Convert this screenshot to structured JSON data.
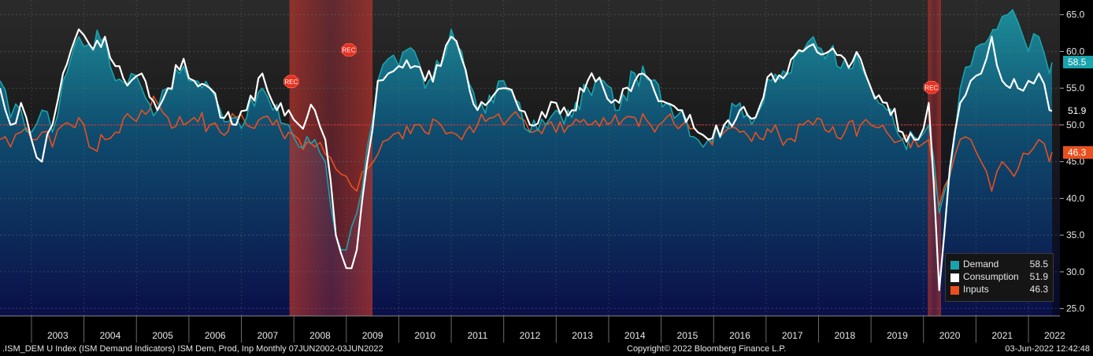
{
  "footer": {
    "left": ".ISM_DEM U Index (ISM Demand Indicators) ISM Dem, Prod, Inp  Monthly 07JUN2002-03JUN2022",
    "center": "Copyright© 2022 Bloomberg Finance L.P.",
    "right": "03-Jun-2022 12:42:48"
  },
  "last_values": {
    "demand": "58.5",
    "consumption": "51.9",
    "inputs": "46.3"
  },
  "legend": [
    {
      "name": "Demand",
      "value": "58.5",
      "color": "#19a3ad"
    },
    {
      "name": "Consumption",
      "value": "51.9",
      "color": "#ffffff"
    },
    {
      "name": "Inputs",
      "value": "46.3",
      "color": "#e8501f"
    }
  ],
  "recession_label": "REC",
  "colors": {
    "demand": "#19a3ad",
    "consumption": "#ffffff",
    "inputs": "#e8501f",
    "recession": "#c0392b",
    "reference_line": "#ff3030"
  },
  "chart_data": {
    "type": "line",
    "x_start": "2002-06",
    "x_end": "2022-05",
    "frequency": "monthly",
    "xlim": [
      2002.4,
      2022.6
    ],
    "ylim": [
      24,
      67
    ],
    "y_ticks": [
      "25.0",
      "30.0",
      "35.0",
      "40.0",
      "45.0",
      "50.0",
      "55.0",
      "60.0",
      "65.0"
    ],
    "x_tick_labels": [
      "2003",
      "2004",
      "2005",
      "2006",
      "2007",
      "2008",
      "2009",
      "2010",
      "2011",
      "2012",
      "2013",
      "2014",
      "2015",
      "2016",
      "2017",
      "2018",
      "2019",
      "2020",
      "2021",
      "2022"
    ],
    "reference_line": 50,
    "recessions": [
      {
        "start": "2007-12",
        "end": "2009-06"
      },
      {
        "start": "2020-02",
        "end": "2020-04"
      }
    ],
    "grid": true,
    "axis_position": "right",
    "legend_position": "bottom-right",
    "series": [
      {
        "name": "Demand",
        "fill": "area",
        "keypoints": [
          [
            2002.4,
            56
          ],
          [
            2002.6,
            51
          ],
          [
            2002.8,
            52
          ],
          [
            2003.0,
            49
          ],
          [
            2003.2,
            52
          ],
          [
            2003.4,
            49
          ],
          [
            2003.6,
            56
          ],
          [
            2003.9,
            62
          ],
          [
            2004.1,
            61
          ],
          [
            2004.4,
            62
          ],
          [
            2004.6,
            56
          ],
          [
            2004.9,
            57
          ],
          [
            2005.1,
            55
          ],
          [
            2005.4,
            52
          ],
          [
            2005.6,
            55
          ],
          [
            2005.9,
            58
          ],
          [
            2006.1,
            56
          ],
          [
            2006.4,
            55
          ],
          [
            2006.6,
            52
          ],
          [
            2006.9,
            51
          ],
          [
            2007.1,
            51
          ],
          [
            2007.4,
            55
          ],
          [
            2007.6,
            52
          ],
          [
            2007.9,
            50
          ],
          [
            2008.1,
            47
          ],
          [
            2008.4,
            48
          ],
          [
            2008.6,
            45
          ],
          [
            2008.8,
            35
          ],
          [
            2009.0,
            33
          ],
          [
            2009.2,
            38
          ],
          [
            2009.4,
            47
          ],
          [
            2009.6,
            56
          ],
          [
            2009.8,
            59
          ],
          [
            2010.0,
            58
          ],
          [
            2010.3,
            60
          ],
          [
            2010.5,
            55
          ],
          [
            2010.8,
            58
          ],
          [
            2011.0,
            63
          ],
          [
            2011.2,
            60
          ],
          [
            2011.5,
            52
          ],
          [
            2011.8,
            53
          ],
          [
            2012.0,
            56
          ],
          [
            2012.3,
            53
          ],
          [
            2012.5,
            49
          ],
          [
            2012.8,
            50
          ],
          [
            2013.0,
            52
          ],
          [
            2013.3,
            51
          ],
          [
            2013.6,
            55
          ],
          [
            2013.9,
            56
          ],
          [
            2014.2,
            52
          ],
          [
            2014.5,
            57
          ],
          [
            2014.8,
            56
          ],
          [
            2015.1,
            53
          ],
          [
            2015.4,
            52
          ],
          [
            2015.7,
            48
          ],
          [
            2015.9,
            48
          ],
          [
            2016.2,
            50
          ],
          [
            2016.5,
            53
          ],
          [
            2016.8,
            51
          ],
          [
            2017.1,
            56
          ],
          [
            2017.4,
            57
          ],
          [
            2017.7,
            60
          ],
          [
            2017.9,
            62
          ],
          [
            2018.2,
            60
          ],
          [
            2018.5,
            59
          ],
          [
            2018.8,
            58
          ],
          [
            2019.0,
            55
          ],
          [
            2019.3,
            52
          ],
          [
            2019.6,
            48
          ],
          [
            2019.9,
            48
          ],
          [
            2020.1,
            50
          ],
          [
            2020.3,
            38
          ],
          [
            2020.5,
            43
          ],
          [
            2020.7,
            55
          ],
          [
            2020.9,
            58
          ],
          [
            2021.1,
            61
          ],
          [
            2021.4,
            63
          ],
          [
            2021.6,
            65
          ],
          [
            2021.8,
            64
          ],
          [
            2022.0,
            60
          ],
          [
            2022.2,
            62
          ],
          [
            2022.4,
            57
          ],
          [
            2022.45,
            58.5
          ]
        ]
      },
      {
        "name": "Consumption",
        "fill": "none",
        "keypoints": [
          [
            2002.4,
            55
          ],
          [
            2002.6,
            50
          ],
          [
            2002.8,
            53
          ],
          [
            2003.0,
            48
          ],
          [
            2003.2,
            45
          ],
          [
            2003.4,
            50
          ],
          [
            2003.6,
            57
          ],
          [
            2003.9,
            63
          ],
          [
            2004.1,
            61
          ],
          [
            2004.4,
            62
          ],
          [
            2004.6,
            58
          ],
          [
            2004.9,
            56
          ],
          [
            2005.1,
            57
          ],
          [
            2005.4,
            52
          ],
          [
            2005.6,
            55
          ],
          [
            2005.9,
            59
          ],
          [
            2006.1,
            56
          ],
          [
            2006.4,
            55
          ],
          [
            2006.6,
            51
          ],
          [
            2006.9,
            50
          ],
          [
            2007.1,
            52
          ],
          [
            2007.4,
            57
          ],
          [
            2007.6,
            53
          ],
          [
            2007.9,
            52
          ],
          [
            2008.1,
            50
          ],
          [
            2008.4,
            52
          ],
          [
            2008.6,
            48
          ],
          [
            2008.8,
            35
          ],
          [
            2009.0,
            30.5
          ],
          [
            2009.2,
            33
          ],
          [
            2009.4,
            45
          ],
          [
            2009.6,
            56
          ],
          [
            2009.8,
            57
          ],
          [
            2010.0,
            58
          ],
          [
            2010.3,
            58
          ],
          [
            2010.5,
            56
          ],
          [
            2010.8,
            58
          ],
          [
            2011.0,
            62
          ],
          [
            2011.2,
            59
          ],
          [
            2011.5,
            52
          ],
          [
            2011.8,
            54
          ],
          [
            2012.0,
            55
          ],
          [
            2012.3,
            52
          ],
          [
            2012.5,
            50
          ],
          [
            2012.8,
            51
          ],
          [
            2013.0,
            53
          ],
          [
            2013.3,
            52
          ],
          [
            2013.6,
            56
          ],
          [
            2013.9,
            55
          ],
          [
            2014.2,
            53
          ],
          [
            2014.5,
            56
          ],
          [
            2014.8,
            56
          ],
          [
            2015.1,
            53
          ],
          [
            2015.4,
            52
          ],
          [
            2015.7,
            49
          ],
          [
            2015.9,
            48
          ],
          [
            2016.2,
            50
          ],
          [
            2016.5,
            52
          ],
          [
            2016.8,
            51
          ],
          [
            2017.1,
            57
          ],
          [
            2017.4,
            57
          ],
          [
            2017.7,
            60
          ],
          [
            2017.9,
            61
          ],
          [
            2018.2,
            60
          ],
          [
            2018.5,
            59
          ],
          [
            2018.8,
            59
          ],
          [
            2019.0,
            55
          ],
          [
            2019.3,
            53
          ],
          [
            2019.6,
            49
          ],
          [
            2019.9,
            48
          ],
          [
            2020.1,
            53
          ],
          [
            2020.3,
            27.5
          ],
          [
            2020.5,
            44
          ],
          [
            2020.7,
            53
          ],
          [
            2020.9,
            56
          ],
          [
            2021.1,
            57
          ],
          [
            2021.3,
            62
          ],
          [
            2021.5,
            56
          ],
          [
            2021.8,
            55
          ],
          [
            2022.0,
            56
          ],
          [
            2022.2,
            57
          ],
          [
            2022.4,
            52
          ],
          [
            2022.45,
            51.9
          ]
        ]
      },
      {
        "name": "Inputs",
        "fill": "none",
        "keypoints": [
          [
            2002.4,
            48
          ],
          [
            2002.6,
            47
          ],
          [
            2002.8,
            49
          ],
          [
            2003.0,
            48
          ],
          [
            2003.2,
            49
          ],
          [
            2003.4,
            47
          ],
          [
            2003.6,
            50
          ],
          [
            2003.9,
            51
          ],
          [
            2004.1,
            47
          ],
          [
            2004.4,
            48
          ],
          [
            2004.6,
            49
          ],
          [
            2004.9,
            51
          ],
          [
            2005.1,
            52
          ],
          [
            2005.4,
            53
          ],
          [
            2005.6,
            51
          ],
          [
            2005.9,
            50
          ],
          [
            2006.1,
            51
          ],
          [
            2006.4,
            50
          ],
          [
            2006.6,
            49
          ],
          [
            2006.9,
            51
          ],
          [
            2007.1,
            50
          ],
          [
            2007.4,
            51
          ],
          [
            2007.6,
            50
          ],
          [
            2007.9,
            49
          ],
          [
            2008.1,
            48
          ],
          [
            2008.4,
            47
          ],
          [
            2008.6,
            46
          ],
          [
            2008.8,
            44
          ],
          [
            2009.0,
            43
          ],
          [
            2009.2,
            41
          ],
          [
            2009.4,
            44
          ],
          [
            2009.6,
            46
          ],
          [
            2009.8,
            48
          ],
          [
            2010.0,
            49
          ],
          [
            2010.3,
            50
          ],
          [
            2010.5,
            49
          ],
          [
            2010.8,
            50
          ],
          [
            2011.0,
            49
          ],
          [
            2011.2,
            48
          ],
          [
            2011.5,
            50
          ],
          [
            2011.8,
            51
          ],
          [
            2012.0,
            50
          ],
          [
            2012.3,
            51
          ],
          [
            2012.5,
            49
          ],
          [
            2012.8,
            50
          ],
          [
            2013.0,
            49
          ],
          [
            2013.3,
            50
          ],
          [
            2013.6,
            50
          ],
          [
            2013.9,
            51
          ],
          [
            2014.2,
            50
          ],
          [
            2014.5,
            51
          ],
          [
            2014.8,
            50
          ],
          [
            2015.1,
            51
          ],
          [
            2015.4,
            50
          ],
          [
            2015.7,
            49
          ],
          [
            2015.9,
            48
          ],
          [
            2016.2,
            49
          ],
          [
            2016.5,
            49
          ],
          [
            2016.8,
            49
          ],
          [
            2017.1,
            49
          ],
          [
            2017.4,
            48
          ],
          [
            2017.7,
            50
          ],
          [
            2017.9,
            50
          ],
          [
            2018.2,
            49
          ],
          [
            2018.5,
            49
          ],
          [
            2018.8,
            50
          ],
          [
            2019.0,
            50
          ],
          [
            2019.3,
            49
          ],
          [
            2019.6,
            48
          ],
          [
            2019.9,
            47
          ],
          [
            2020.1,
            48
          ],
          [
            2020.3,
            39
          ],
          [
            2020.5,
            43
          ],
          [
            2020.7,
            48
          ],
          [
            2020.9,
            48
          ],
          [
            2021.1,
            45
          ],
          [
            2021.3,
            41
          ],
          [
            2021.5,
            45
          ],
          [
            2021.8,
            44
          ],
          [
            2022.0,
            46
          ],
          [
            2022.2,
            48
          ],
          [
            2022.4,
            45
          ],
          [
            2022.45,
            46.3
          ]
        ]
      }
    ]
  }
}
